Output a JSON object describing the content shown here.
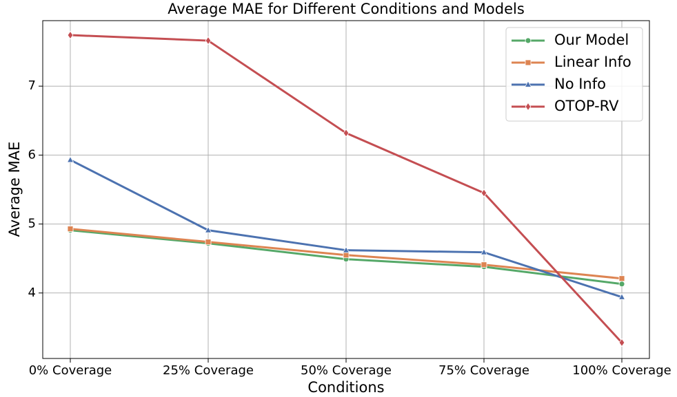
{
  "chart_data": {
    "type": "line",
    "title": "Average MAE for Different Conditions and Models",
    "x_label": "Conditions",
    "y_label": "Average MAE",
    "categories": [
      "0% Coverage",
      "25% Coverage",
      "50% Coverage",
      "75% Coverage",
      "100% Coverage"
    ],
    "series": [
      {
        "name": "Our Model",
        "color": "#55a868",
        "marker": "circle",
        "values": [
          4.91,
          4.72,
          4.49,
          4.38,
          4.13
        ]
      },
      {
        "name": "Linear Info",
        "color": "#dd8452",
        "marker": "square",
        "values": [
          4.93,
          4.74,
          4.55,
          4.41,
          4.21
        ]
      },
      {
        "name": "No Info",
        "color": "#4c72b0",
        "marker": "triangle",
        "values": [
          5.93,
          4.91,
          4.62,
          4.59,
          3.94
        ]
      },
      {
        "name": "OTOP-RV",
        "color": "#c44e52",
        "marker": "diamond",
        "values": [
          7.74,
          7.66,
          6.32,
          5.45,
          3.28
        ]
      }
    ],
    "ylim": [
      3.05,
      7.95
    ],
    "yticks": [
      4,
      5,
      6,
      7
    ],
    "grid": true,
    "legend": "upper right"
  }
}
